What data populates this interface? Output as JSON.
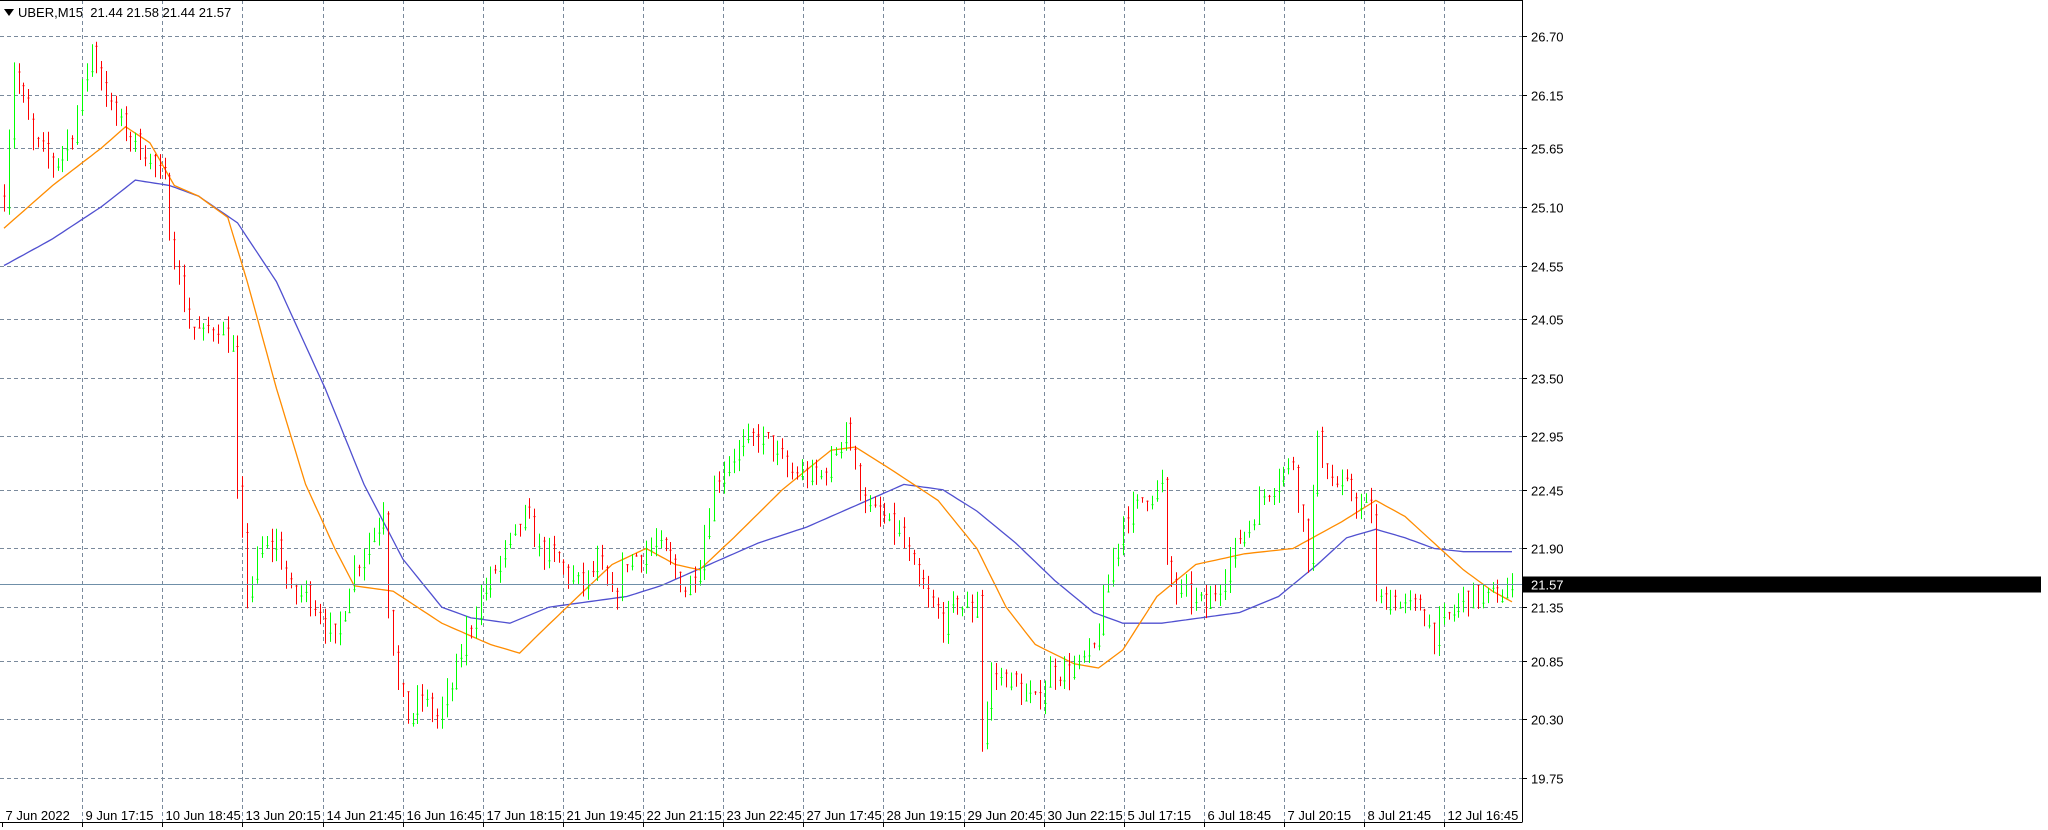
{
  "header": {
    "symbol": "UBER,M15",
    "ohlc": "21.44 21.58 21.44 21.57"
  },
  "current_price_label": "21.57",
  "colors": {
    "bull": "#00ff00",
    "bear": "#ff0000",
    "ma_fast": "#ff8c00",
    "ma_slow": "#5050d0",
    "grid": "#7a8a9c",
    "price_line": "#6f8fa8"
  },
  "chart_data": {
    "type": "candlestick",
    "instrument": "UBER",
    "timeframe": "M15",
    "ylim": [
      19.75,
      26.7
    ],
    "grid": true,
    "y_ticks": [
      "26.70",
      "26.15",
      "25.65",
      "25.10",
      "24.55",
      "24.05",
      "23.50",
      "22.95",
      "22.45",
      "21.90",
      "21.35",
      "20.85",
      "20.30",
      "19.75"
    ],
    "x_ticks": [
      "7 Jun 2022",
      "9 Jun 17:15",
      "10 Jun 18:45",
      "13 Jun 20:15",
      "14 Jun 21:45",
      "16 Jun 16:45",
      "17 Jun 18:15",
      "21 Jun 19:45",
      "22 Jun 21:15",
      "23 Jun 22:45",
      "27 Jun 17:45",
      "28 Jun 19:15",
      "29 Jun 20:45",
      "30 Jun 22:15",
      "5 Jul 17:15",
      "6 Jul 18:45",
      "7 Jul 20:15",
      "8 Jul 21:45",
      "12 Jul 16:45"
    ],
    "price_path": [
      [
        0,
        25.2
      ],
      [
        2,
        26.4
      ],
      [
        6,
        25.7
      ],
      [
        10,
        25.5
      ],
      [
        14,
        25.8
      ],
      [
        18,
        26.6
      ],
      [
        22,
        26.0
      ],
      [
        26,
        25.75
      ],
      [
        30,
        25.55
      ],
      [
        33,
        25.3
      ],
      [
        34,
        24.9
      ],
      [
        36,
        24.4
      ],
      [
        38,
        24.0
      ],
      [
        41,
        23.9
      ],
      [
        44,
        24.0
      ],
      [
        47,
        23.75
      ],
      [
        48,
        22.4
      ],
      [
        50,
        21.5
      ],
      [
        53,
        21.9
      ],
      [
        56,
        21.95
      ],
      [
        59,
        21.45
      ],
      [
        62,
        21.5
      ],
      [
        65,
        21.3
      ],
      [
        68,
        21.0
      ],
      [
        71,
        21.6
      ],
      [
        74,
        21.9
      ],
      [
        77,
        22.15
      ],
      [
        78,
        22.3
      ],
      [
        79,
        21.4
      ],
      [
        81,
        20.6
      ],
      [
        83,
        20.3
      ],
      [
        86,
        20.5
      ],
      [
        89,
        20.3
      ],
      [
        92,
        20.6
      ],
      [
        95,
        21.1
      ],
      [
        98,
        21.45
      ],
      [
        101,
        21.7
      ],
      [
        104,
        21.95
      ],
      [
        107,
        22.2
      ],
      [
        110,
        21.9
      ],
      [
        113,
        21.8
      ],
      [
        116,
        21.65
      ],
      [
        119,
        21.55
      ],
      [
        122,
        21.75
      ],
      [
        125,
        21.4
      ],
      [
        128,
        21.8
      ],
      [
        131,
        21.85
      ],
      [
        134,
        21.95
      ],
      [
        137,
        21.75
      ],
      [
        140,
        21.5
      ],
      [
        143,
        21.8
      ],
      [
        146,
        22.5
      ],
      [
        149,
        22.75
      ],
      [
        152,
        22.85
      ],
      [
        155,
        22.95
      ],
      [
        158,
        22.85
      ],
      [
        161,
        22.6
      ],
      [
        164,
        22.6
      ],
      [
        167,
        22.55
      ],
      [
        170,
        22.7
      ],
      [
        173,
        23.1
      ],
      [
        175,
        22.6
      ],
      [
        178,
        22.25
      ],
      [
        181,
        22.15
      ],
      [
        184,
        22.05
      ],
      [
        187,
        21.65
      ],
      [
        190,
        21.4
      ],
      [
        193,
        21.2
      ],
      [
        196,
        21.4
      ],
      [
        199,
        21.3
      ],
      [
        200,
        21.5
      ],
      [
        201,
        20.1
      ],
      [
        203,
        20.7
      ],
      [
        206,
        20.7
      ],
      [
        209,
        20.55
      ],
      [
        212,
        20.45
      ],
      [
        215,
        20.75
      ],
      [
        218,
        20.75
      ],
      [
        221,
        20.8
      ],
      [
        224,
        20.95
      ],
      [
        227,
        21.6
      ],
      [
        230,
        22.2
      ],
      [
        233,
        22.3
      ],
      [
        236,
        22.45
      ],
      [
        238,
        22.5
      ],
      [
        239,
        21.7
      ],
      [
        241,
        21.5
      ],
      [
        244,
        21.45
      ],
      [
        247,
        21.35
      ],
      [
        250,
        21.6
      ],
      [
        253,
        21.9
      ],
      [
        256,
        22.15
      ],
      [
        259,
        22.4
      ],
      [
        262,
        22.6
      ],
      [
        265,
        22.7
      ],
      [
        268,
        21.85
      ],
      [
        270,
        22.9
      ],
      [
        273,
        22.5
      ],
      [
        276,
        22.45
      ],
      [
        279,
        22.3
      ],
      [
        281,
        22.25
      ],
      [
        282,
        21.4
      ],
      [
        285,
        21.45
      ],
      [
        288,
        21.35
      ],
      [
        291,
        21.35
      ],
      [
        294,
        21.1
      ],
      [
        297,
        21.25
      ],
      [
        300,
        21.45
      ],
      [
        303,
        21.45
      ],
      [
        306,
        21.45
      ],
      [
        309,
        21.5
      ],
      [
        310,
        21.55
      ]
    ],
    "ma_fast_path": [
      [
        0,
        24.9
      ],
      [
        10,
        25.3
      ],
      [
        20,
        25.65
      ],
      [
        25,
        25.85
      ],
      [
        30,
        25.7
      ],
      [
        35,
        25.3
      ],
      [
        40,
        25.2
      ],
      [
        46,
        25.0
      ],
      [
        50,
        24.4
      ],
      [
        56,
        23.4
      ],
      [
        62,
        22.5
      ],
      [
        68,
        21.9
      ],
      [
        72,
        21.55
      ],
      [
        80,
        21.5
      ],
      [
        90,
        21.2
      ],
      [
        100,
        21.0
      ],
      [
        106,
        20.92
      ],
      [
        110,
        21.1
      ],
      [
        118,
        21.45
      ],
      [
        125,
        21.75
      ],
      [
        132,
        21.9
      ],
      [
        138,
        21.75
      ],
      [
        143,
        21.7
      ],
      [
        150,
        22.0
      ],
      [
        160,
        22.45
      ],
      [
        170,
        22.82
      ],
      [
        175,
        22.85
      ],
      [
        182,
        22.65
      ],
      [
        192,
        22.35
      ],
      [
        200,
        21.9
      ],
      [
        206,
        21.35
      ],
      [
        212,
        21.0
      ],
      [
        220,
        20.82
      ],
      [
        225,
        20.78
      ],
      [
        230,
        20.95
      ],
      [
        237,
        21.45
      ],
      [
        245,
        21.75
      ],
      [
        255,
        21.85
      ],
      [
        265,
        21.9
      ],
      [
        275,
        22.15
      ],
      [
        282,
        22.35
      ],
      [
        288,
        22.2
      ],
      [
        294,
        21.95
      ],
      [
        300,
        21.7
      ],
      [
        306,
        21.5
      ],
      [
        310,
        21.4
      ]
    ],
    "ma_slow_path": [
      [
        0,
        24.55
      ],
      [
        10,
        24.8
      ],
      [
        20,
        25.1
      ],
      [
        27,
        25.35
      ],
      [
        34,
        25.3
      ],
      [
        40,
        25.2
      ],
      [
        48,
        24.95
      ],
      [
        56,
        24.4
      ],
      [
        66,
        23.4
      ],
      [
        74,
        22.5
      ],
      [
        82,
        21.8
      ],
      [
        90,
        21.35
      ],
      [
        96,
        21.25
      ],
      [
        104,
        21.2
      ],
      [
        112,
        21.35
      ],
      [
        120,
        21.4
      ],
      [
        128,
        21.45
      ],
      [
        135,
        21.55
      ],
      [
        145,
        21.75
      ],
      [
        155,
        21.95
      ],
      [
        165,
        22.1
      ],
      [
        175,
        22.3
      ],
      [
        185,
        22.5
      ],
      [
        193,
        22.45
      ],
      [
        200,
        22.25
      ],
      [
        208,
        21.95
      ],
      [
        216,
        21.6
      ],
      [
        224,
        21.3
      ],
      [
        230,
        21.2
      ],
      [
        238,
        21.2
      ],
      [
        246,
        21.25
      ],
      [
        254,
        21.3
      ],
      [
        262,
        21.45
      ],
      [
        270,
        21.75
      ],
      [
        276,
        22.0
      ],
      [
        282,
        22.08
      ],
      [
        288,
        22.0
      ],
      [
        294,
        21.9
      ],
      [
        300,
        21.87
      ],
      [
        306,
        21.87
      ],
      [
        310,
        21.87
      ]
    ],
    "last_price": 21.57
  }
}
